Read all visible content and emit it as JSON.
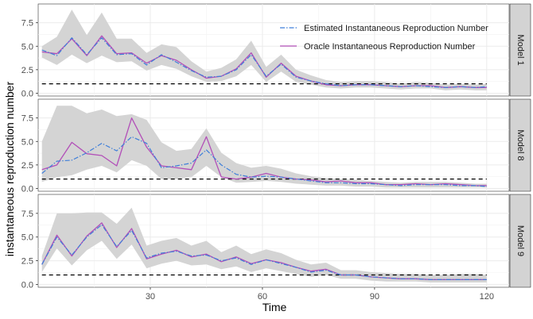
{
  "chart_data": {
    "type": "line",
    "xlabel": "Time",
    "ylabel": "instantaneous reproduction number",
    "xlim": [
      0,
      126
    ],
    "ylim": [
      -0.3,
      9.5
    ],
    "x_ticks": [
      30,
      60,
      90,
      120
    ],
    "y_ticks": [
      0.0,
      2.5,
      5.0,
      7.5
    ],
    "y_tick_labels": [
      "0.0",
      "2.5",
      "5.0",
      "7.5"
    ],
    "reference_line": 1.0,
    "grid": true,
    "legend_position": "top-right (inside first panel)",
    "colors": {
      "estimated": "#3f7fd9",
      "oracle": "#b24fb8",
      "band": "#d4d4d4",
      "reference": "#000000",
      "panel_bg": "#ffffff",
      "grid": "#ebebeb",
      "strip_bg": "#d3d3d3"
    },
    "series_legend": [
      {
        "key": "estimated",
        "name": "Estimated Instantaneous Reproduction Number",
        "style": "dashdot"
      },
      {
        "key": "oracle",
        "name": "Oracle Instantaneous Reproduction Number",
        "style": "solid"
      }
    ],
    "panels": [
      {
        "label": "Model 1",
        "time": [
          1,
          5,
          9,
          13,
          17,
          21,
          25,
          29,
          33,
          37,
          41,
          45,
          49,
          53,
          57,
          61,
          65,
          69,
          73,
          77,
          81,
          85,
          89,
          93,
          97,
          101,
          105,
          109,
          113,
          117,
          120
        ],
        "oracle": [
          4.4,
          4.2,
          5.8,
          4.0,
          6.1,
          4.2,
          4.3,
          3.2,
          4.0,
          3.5,
          2.5,
          1.6,
          1.8,
          2.6,
          4.3,
          1.7,
          3.2,
          1.8,
          1.3,
          0.9,
          0.8,
          0.9,
          0.9,
          0.8,
          0.7,
          0.8,
          0.8,
          0.6,
          0.7,
          0.6,
          0.6
        ],
        "estimated": [
          4.6,
          4.0,
          5.9,
          4.1,
          5.9,
          4.1,
          4.2,
          3.0,
          4.1,
          3.3,
          2.4,
          1.7,
          1.8,
          2.5,
          4.1,
          1.8,
          3.1,
          1.7,
          1.3,
          1.0,
          0.8,
          0.9,
          0.9,
          0.8,
          0.7,
          0.8,
          0.7,
          0.6,
          0.7,
          0.6,
          0.7
        ],
        "lower": [
          3.8,
          3.0,
          4.1,
          3.2,
          4.0,
          3.3,
          3.4,
          2.4,
          3.0,
          2.6,
          1.8,
          1.2,
          1.3,
          1.8,
          3.0,
          1.2,
          2.3,
          1.2,
          0.9,
          0.6,
          0.5,
          0.6,
          0.6,
          0.5,
          0.4,
          0.5,
          0.5,
          0.3,
          0.4,
          0.3,
          0.3
        ],
        "upper": [
          5.0,
          6.0,
          8.9,
          6.2,
          8.6,
          5.8,
          5.8,
          4.3,
          5.2,
          4.9,
          3.4,
          2.3,
          2.7,
          3.6,
          5.6,
          2.8,
          4.1,
          2.5,
          1.9,
          1.4,
          1.2,
          1.3,
          1.3,
          1.2,
          1.0,
          1.2,
          1.1,
          0.9,
          1.0,
          0.9,
          1.0
        ]
      },
      {
        "label": "Model 8",
        "time": [
          1,
          5,
          9,
          13,
          17,
          21,
          25,
          29,
          33,
          37,
          41,
          45,
          49,
          53,
          57,
          61,
          65,
          69,
          73,
          77,
          81,
          85,
          89,
          93,
          97,
          101,
          105,
          109,
          113,
          117,
          120
        ],
        "oracle": [
          2.0,
          2.5,
          4.9,
          3.7,
          3.5,
          2.4,
          7.5,
          4.4,
          2.4,
          2.2,
          2.0,
          5.5,
          1.2,
          1.0,
          1.2,
          1.6,
          1.2,
          1.0,
          0.9,
          0.7,
          0.8,
          0.6,
          0.6,
          0.4,
          0.4,
          0.5,
          0.4,
          0.5,
          0.4,
          0.3,
          0.3
        ],
        "estimated": [
          1.6,
          2.9,
          3.0,
          3.8,
          4.8,
          4.0,
          5.5,
          4.8,
          2.2,
          2.4,
          2.7,
          4.1,
          2.5,
          1.5,
          1.2,
          1.3,
          1.2,
          1.0,
          0.8,
          0.6,
          0.6,
          0.5,
          0.5,
          0.4,
          0.3,
          0.4,
          0.4,
          0.4,
          0.3,
          0.3,
          0.2
        ],
        "lower": [
          0.7,
          1.2,
          1.4,
          2.0,
          2.4,
          1.7,
          3.0,
          2.4,
          1.0,
          1.0,
          1.2,
          2.4,
          1.2,
          0.6,
          0.7,
          0.8,
          0.7,
          0.5,
          0.4,
          0.3,
          0.3,
          0.2,
          0.2,
          0.1,
          0.1,
          0.1,
          0.1,
          0.1,
          0.1,
          0.1,
          0.1
        ],
        "upper": [
          5.0,
          8.8,
          8.8,
          8.0,
          8.4,
          7.7,
          7.9,
          7.3,
          4.9,
          4.0,
          4.2,
          6.4,
          3.8,
          2.7,
          2.2,
          2.4,
          2.1,
          1.6,
          1.3,
          1.1,
          1.0,
          0.9,
          0.8,
          0.7,
          0.6,
          0.7,
          0.7,
          0.7,
          0.6,
          0.5,
          0.5
        ]
      },
      {
        "label": "Model 9",
        "time": [
          1,
          5,
          9,
          13,
          17,
          21,
          25,
          29,
          33,
          37,
          41,
          45,
          49,
          53,
          57,
          61,
          65,
          69,
          73,
          77,
          81,
          85,
          89,
          93,
          97,
          101,
          105,
          109,
          113,
          117,
          120
        ],
        "oracle": [
          2.1,
          5.2,
          3.0,
          5.1,
          6.5,
          3.9,
          5.9,
          2.7,
          3.2,
          3.6,
          2.9,
          3.2,
          2.4,
          2.9,
          2.2,
          2.6,
          2.3,
          1.8,
          1.4,
          1.6,
          1.0,
          1.0,
          0.8,
          0.7,
          0.6,
          0.6,
          0.5,
          0.5,
          0.5,
          0.5,
          0.5
        ],
        "estimated": [
          2.1,
          5.0,
          3.1,
          5.0,
          6.3,
          4.0,
          5.7,
          2.8,
          3.3,
          3.5,
          3.0,
          3.1,
          2.5,
          2.8,
          2.1,
          2.6,
          2.2,
          1.8,
          1.3,
          1.5,
          1.0,
          1.0,
          0.8,
          0.7,
          0.6,
          0.6,
          0.5,
          0.5,
          0.5,
          0.5,
          0.5
        ],
        "lower": [
          1.3,
          3.8,
          2.0,
          3.6,
          4.6,
          2.7,
          4.2,
          1.7,
          2.2,
          2.5,
          2.0,
          2.1,
          1.6,
          1.9,
          1.3,
          1.7,
          1.4,
          1.1,
          0.8,
          1.0,
          0.6,
          0.6,
          0.4,
          0.3,
          0.3,
          0.3,
          0.2,
          0.2,
          0.2,
          0.2,
          0.2
        ],
        "upper": [
          3.0,
          7.5,
          7.5,
          7.6,
          7.6,
          6.4,
          8.1,
          4.1,
          4.6,
          4.9,
          4.1,
          4.6,
          3.4,
          4.1,
          3.2,
          3.7,
          3.3,
          2.6,
          2.1,
          2.3,
          1.5,
          1.5,
          1.3,
          1.2,
          1.1,
          1.1,
          1.0,
          1.0,
          1.1,
          1.1,
          1.0
        ]
      }
    ]
  }
}
